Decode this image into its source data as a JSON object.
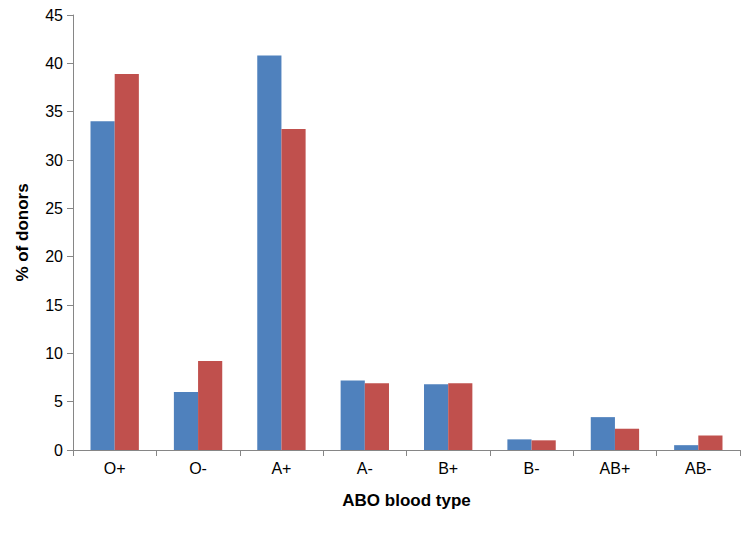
{
  "chart_data": {
    "type": "bar",
    "x_label": "ABO blood type",
    "y_label": "% of donors",
    "categories": [
      "O+",
      "O-",
      "A+",
      "A-",
      "B+",
      "B-",
      "AB+",
      "AB-"
    ],
    "series": [
      {
        "color": "#4f81bd",
        "values": [
          34.0,
          6.0,
          40.8,
          7.2,
          6.8,
          1.1,
          3.4,
          0.5
        ]
      },
      {
        "color": "#c0504d",
        "values": [
          38.9,
          9.2,
          33.2,
          6.9,
          6.9,
          1.0,
          2.2,
          1.5
        ]
      }
    ],
    "ylim": [
      0,
      45
    ],
    "yticks": [
      0,
      5,
      10,
      15,
      20,
      25,
      30,
      35,
      40,
      45
    ],
    "grid": false
  }
}
